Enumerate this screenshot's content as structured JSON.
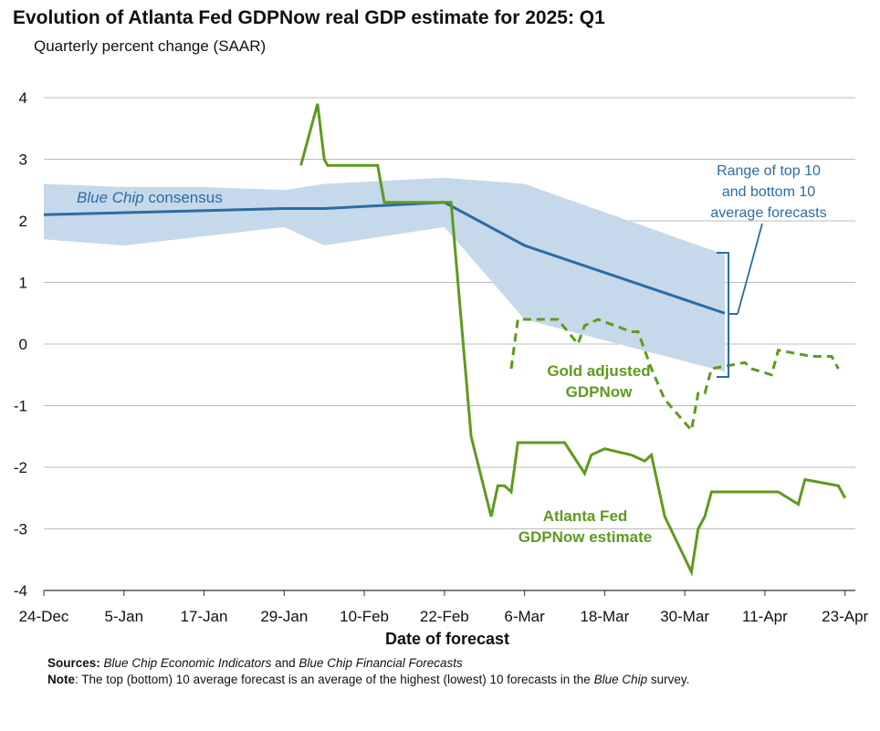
{
  "chart_data": {
    "type": "line",
    "title": "Evolution of Atlanta Fed GDPNow real GDP estimate for 2025: Q1",
    "subtitle": "Quarterly percent change (SAAR)",
    "xlabel": "Date of forecast",
    "ylabel": "",
    "ylim": [
      -4,
      4
    ],
    "yticks": [
      4,
      3,
      2,
      1,
      0,
      -1,
      -2,
      -3,
      -4
    ],
    "xlim_days": [
      0,
      121
    ],
    "xticks": [
      {
        "label": "24-Dec",
        "day": 0
      },
      {
        "label": "5-Jan",
        "day": 12
      },
      {
        "label": "17-Jan",
        "day": 24
      },
      {
        "label": "29-Jan",
        "day": 36
      },
      {
        "label": "10-Feb",
        "day": 48
      },
      {
        "label": "22-Feb",
        "day": 60
      },
      {
        "label": "6-Mar",
        "day": 72
      },
      {
        "label": "18-Mar",
        "day": 84
      },
      {
        "label": "30-Mar",
        "day": 96
      },
      {
        "label": "11-Apr",
        "day": 108
      },
      {
        "label": "23-Apr",
        "day": 120
      }
    ],
    "grid": true,
    "band": {
      "name": "Range of top 10 and bottom 10 average forecasts",
      "color": "#c5d9ea",
      "upper": [
        [
          0,
          2.6
        ],
        [
          12,
          2.55
        ],
        [
          24,
          2.55
        ],
        [
          36,
          2.5
        ],
        [
          42,
          2.6
        ],
        [
          60,
          2.7
        ],
        [
          72,
          2.6
        ],
        [
          102,
          1.45
        ]
      ],
      "lower": [
        [
          0,
          1.7
        ],
        [
          12,
          1.6
        ],
        [
          24,
          1.75
        ],
        [
          36,
          1.9
        ],
        [
          42,
          1.6
        ],
        [
          60,
          1.9
        ],
        [
          72,
          0.4
        ],
        [
          102,
          -0.45
        ]
      ]
    },
    "series": [
      {
        "name": "Blue Chip consensus",
        "color": "#2b6ca3",
        "dash": false,
        "points": [
          [
            0,
            2.1
          ],
          [
            36,
            2.2
          ],
          [
            42,
            2.2
          ],
          [
            60,
            2.3
          ],
          [
            72,
            1.6
          ],
          [
            102,
            0.5
          ]
        ]
      },
      {
        "name": "Atlanta Fed GDPNow estimate",
        "color": "#5e9a1f",
        "dash": false,
        "points": [
          [
            38.5,
            2.9
          ],
          [
            41,
            3.9
          ],
          [
            42,
            3.0
          ],
          [
            42.5,
            2.9
          ],
          [
            50,
            2.9
          ],
          [
            51,
            2.3
          ],
          [
            60,
            2.3
          ],
          [
            61,
            2.3
          ],
          [
            64,
            -1.5
          ],
          [
            67,
            -2.8
          ],
          [
            68,
            -2.3
          ],
          [
            69,
            -2.3
          ],
          [
            70,
            -2.4
          ],
          [
            71,
            -1.6
          ],
          [
            77,
            -1.6
          ],
          [
            78,
            -1.6
          ],
          [
            81,
            -2.1
          ],
          [
            82,
            -1.8
          ],
          [
            84,
            -1.7
          ],
          [
            88,
            -1.8
          ],
          [
            90,
            -1.9
          ],
          [
            91,
            -1.8
          ],
          [
            93,
            -2.8
          ],
          [
            97,
            -3.7
          ],
          [
            98,
            -3.0
          ],
          [
            99,
            -2.8
          ],
          [
            100,
            -2.4
          ],
          [
            110,
            -2.4
          ],
          [
            113,
            -2.6
          ],
          [
            114,
            -2.2
          ],
          [
            119,
            -2.3
          ],
          [
            120,
            -2.5
          ]
        ]
      },
      {
        "name": "Gold adjusted GDPNow",
        "color": "#5e9a1f",
        "dash": true,
        "points": [
          [
            70,
            -0.4
          ],
          [
            71,
            0.4
          ],
          [
            77,
            0.4
          ],
          [
            80,
            0.0
          ],
          [
            81,
            0.3
          ],
          [
            83,
            0.4
          ],
          [
            88,
            0.2
          ],
          [
            89,
            0.2
          ],
          [
            91,
            -0.4
          ],
          [
            93,
            -0.9
          ],
          [
            97,
            -1.4
          ],
          [
            98,
            -0.8
          ],
          [
            99,
            -0.8
          ],
          [
            100,
            -0.4
          ],
          [
            105,
            -0.3
          ],
          [
            106,
            -0.4
          ],
          [
            109,
            -0.5
          ],
          [
            110,
            -0.1
          ],
          [
            115,
            -0.2
          ],
          [
            118,
            -0.2
          ],
          [
            119,
            -0.4
          ]
        ]
      }
    ],
    "annotations": {
      "band_label_line1": "Range of top 10",
      "band_label_line2": "and bottom 10",
      "band_label_line3": "average forecasts",
      "consensus_label_italic": "Blue Chip",
      "consensus_label_rest": " consensus",
      "gold_label_line1": "Gold adjusted",
      "gold_label_line2": "GDPNow",
      "gdpnow_label_line1": "Atlanta Fed",
      "gdpnow_label_line2": "GDPNow estimate"
    }
  },
  "footnotes": {
    "sources_label": "Sources:",
    "sources_part1": "Blue Chip Economic Indicators",
    "sources_and": " and ",
    "sources_part2": "Blue Chip Financial Forecasts",
    "note_label": "Note",
    "note_text_1": ": The top (bottom) 10 average forecast is an average of the highest (lowest) 10 forecasts in the ",
    "note_italic": "Blue Chip",
    "note_text_2": " survey."
  },
  "colors": {
    "blue": "#2b6ca3",
    "green": "#5e9a1f",
    "band": "#c5d9ea",
    "grid": "#bbbbbb"
  }
}
